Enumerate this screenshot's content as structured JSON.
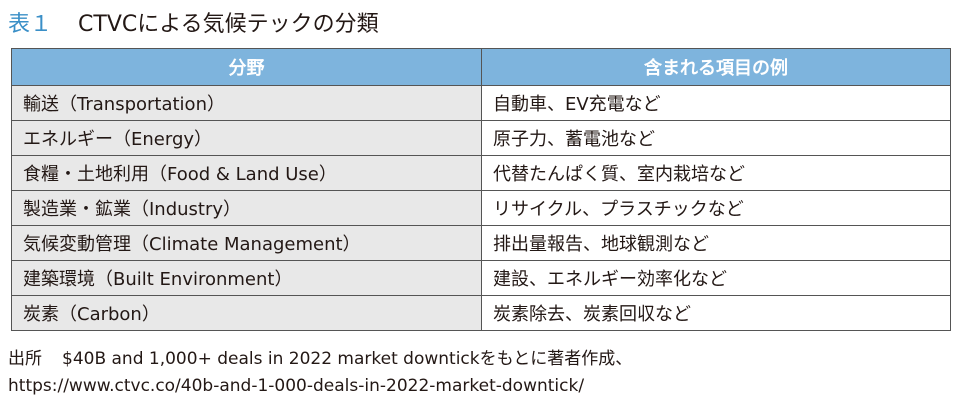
{
  "title": {
    "label": "表１",
    "text": "CTVCによる気候テックの分類"
  },
  "table": {
    "headers": [
      "分野",
      "含まれる項目の例"
    ],
    "rows": [
      {
        "category": "輸送（Transportation）",
        "examples": "自動車、EV充電など"
      },
      {
        "category": "エネルギー（Energy）",
        "examples": "原子力、蓄電池など"
      },
      {
        "category": "食糧・土地利用（Food & Land Use）",
        "examples": "代替たんぱく質、室内栽培など"
      },
      {
        "category": "製造業・鉱業（Industry）",
        "examples": "リサイクル、プラスチックなど"
      },
      {
        "category": "気候変動管理（Climate Management）",
        "examples": "排出量報告、地球観測など"
      },
      {
        "category": "建築環境（Built Environment）",
        "examples": "建設、エネルギー効率化など"
      },
      {
        "category": "炭素（Carbon）",
        "examples": "炭素除去、炭素回収など"
      }
    ]
  },
  "source": {
    "label": "出所",
    "line1": "$40B and 1,000+ deals in 2022 market downtickをもとに著者作成、",
    "line2": "https://www.ctvc.co/40b-and-1-000-deals-in-2022-market-downtick/"
  }
}
